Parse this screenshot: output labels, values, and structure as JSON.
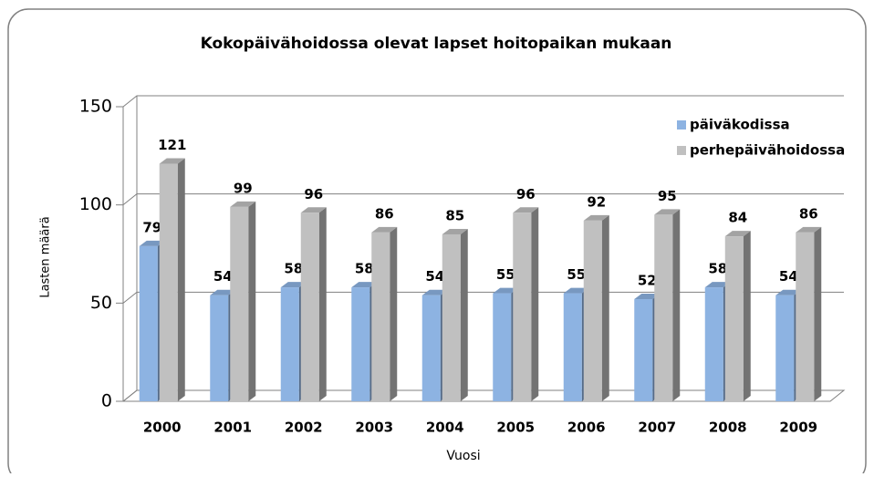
{
  "chart_data": {
    "type": "bar3d",
    "title": "Kokopäivähoidossa olevat lapset hoitopaikan mukaan",
    "x_label": "Vuosi",
    "y_label": "Lasten määrä",
    "categories": [
      "2000",
      "2001",
      "2002",
      "2003",
      "2004",
      "2005",
      "2006",
      "2007",
      "2008",
      "2009"
    ],
    "series": [
      {
        "name": "päiväkodissa",
        "color": "#8db3e2",
        "values": [
          79,
          54,
          58,
          58,
          54,
          55,
          55,
          52,
          58,
          54
        ]
      },
      {
        "name": "perhepäivähoidossa",
        "color": "#c0c0c0",
        "values": [
          121,
          99,
          96,
          86,
          85,
          96,
          92,
          95,
          84,
          86
        ]
      }
    ],
    "ylim": [
      0,
      150
    ],
    "yticks": [
      0,
      50,
      100,
      150
    ],
    "grid": true,
    "legend": "upper right"
  }
}
